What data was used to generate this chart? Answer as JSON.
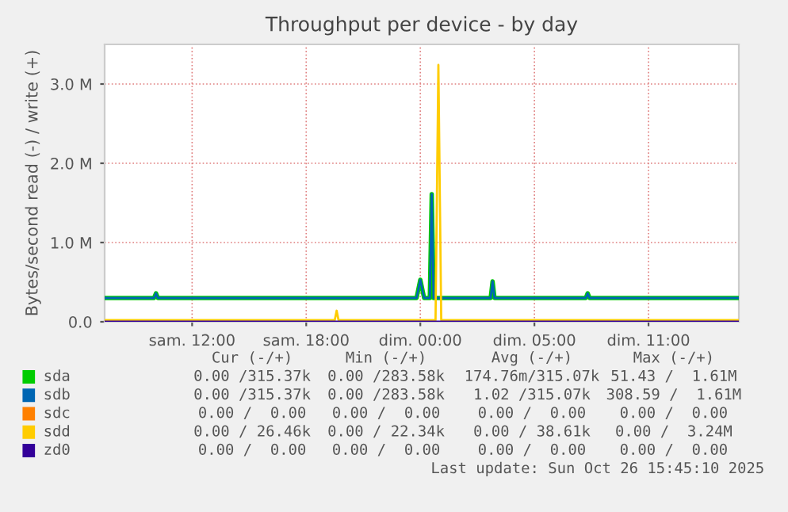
{
  "chart_data": {
    "type": "line",
    "title": "Throughput per device - by day",
    "ylabel": "Bytes/second read (-) / write (+)",
    "xlim": [
      "2025-10-25T05:24",
      "2025-10-26T14:45"
    ],
    "xticks": [
      {
        "value": "2025-10-25T10:00",
        "label": "sam. 12:00"
      },
      {
        "value": "2025-10-25T16:00",
        "label": "sam. 18:00"
      },
      {
        "value": "2025-10-25T22:00",
        "label": "dim. 00:00"
      },
      {
        "value": "2025-10-26T04:00",
        "label": "dim. 05:00"
      },
      {
        "value": "2025-10-26T10:00",
        "label": "dim. 11:00"
      }
    ],
    "ylim": [
      0,
      3500000
    ],
    "yticks": [
      {
        "value": 0,
        "label": "0.0"
      },
      {
        "value": 1000000,
        "label": "1.0 M"
      },
      {
        "value": 2000000,
        "label": "2.0 M"
      },
      {
        "value": 3000000,
        "label": "3.0 M"
      }
    ],
    "grid": true,
    "legend": "bottom",
    "line_style": "solid",
    "marker": "none",
    "series": [
      {
        "name": "sda",
        "color": "#00cc00",
        "x": [
          "2025-10-25T05:24",
          "2025-10-25T08:00",
          "2025-10-25T08:06",
          "2025-10-25T08:12",
          "2025-10-25T21:48",
          "2025-10-25T22:00",
          "2025-10-25T22:12",
          "2025-10-25T22:30",
          "2025-10-25T22:36",
          "2025-10-25T22:42",
          "2025-10-26T01:42",
          "2025-10-26T01:48",
          "2025-10-26T01:54",
          "2025-10-26T06:42",
          "2025-10-26T06:48",
          "2025-10-26T06:54",
          "2025-10-26T14:42"
        ],
        "values": [
          300000,
          300000,
          360000,
          300000,
          300000,
          530000,
          300000,
          300000,
          1610000,
          300000,
          300000,
          510000,
          300000,
          300000,
          360000,
          300000,
          300000
        ]
      },
      {
        "name": "sdb",
        "color": "#0066b3",
        "x": [
          "2025-10-25T05:24",
          "2025-10-25T08:00",
          "2025-10-25T08:06",
          "2025-10-25T08:12",
          "2025-10-25T21:48",
          "2025-10-25T22:00",
          "2025-10-25T22:12",
          "2025-10-25T22:30",
          "2025-10-25T22:36",
          "2025-10-25T22:42",
          "2025-10-26T01:42",
          "2025-10-26T01:48",
          "2025-10-26T01:54",
          "2025-10-26T06:42",
          "2025-10-26T06:48",
          "2025-10-26T06:54",
          "2025-10-26T14:42"
        ],
        "values": [
          300000,
          300000,
          360000,
          300000,
          300000,
          530000,
          300000,
          300000,
          1610000,
          300000,
          300000,
          510000,
          300000,
          300000,
          360000,
          300000,
          300000
        ]
      },
      {
        "name": "sdc",
        "color": "#ff8000"
      },
      {
        "name": "sdd",
        "color": "#ffcc00",
        "x": [
          "2025-10-25T05:24",
          "2025-10-25T17:30",
          "2025-10-25T17:36",
          "2025-10-25T17:42",
          "2025-10-25T22:48",
          "2025-10-25T22:57",
          "2025-10-25T23:06",
          "2025-10-26T14:42"
        ],
        "values": [
          20000,
          20000,
          140000,
          20000,
          20000,
          3240000,
          20000,
          20000
        ]
      },
      {
        "name": "zd0",
        "color": "#330099",
        "x": [
          "2025-10-25T05:24",
          "2025-10-26T14:42"
        ],
        "values": [
          0,
          0
        ]
      }
    ],
    "annotations": [
      "Cur (-/+)",
      "Min (-/+)",
      "Avg (-/+)",
      "Max (-/+)",
      "0.00 /315.37k",
      "0.00 /283.58k",
      "174.76m/315.07k",
      "51.43 /  1.61M",
      "0.00 /315.37k",
      "0.00 /283.58k",
      "1.02 /315.07k",
      "308.59 /  1.61M",
      "0.00 /  0.00",
      "0.00 /  0.00",
      "0.00 /  0.00",
      "0.00 /  0.00",
      "0.00 / 26.46k",
      "0.00 / 22.34k",
      "0.00 / 38.61k",
      "0.00 /  3.24M",
      "0.00 /  0.00",
      "0.00 /  0.00",
      "0.00 /  0.00",
      "0.00 /  0.00",
      "Last update: Sun Oct 26 15:45:10 2025"
    ]
  }
}
